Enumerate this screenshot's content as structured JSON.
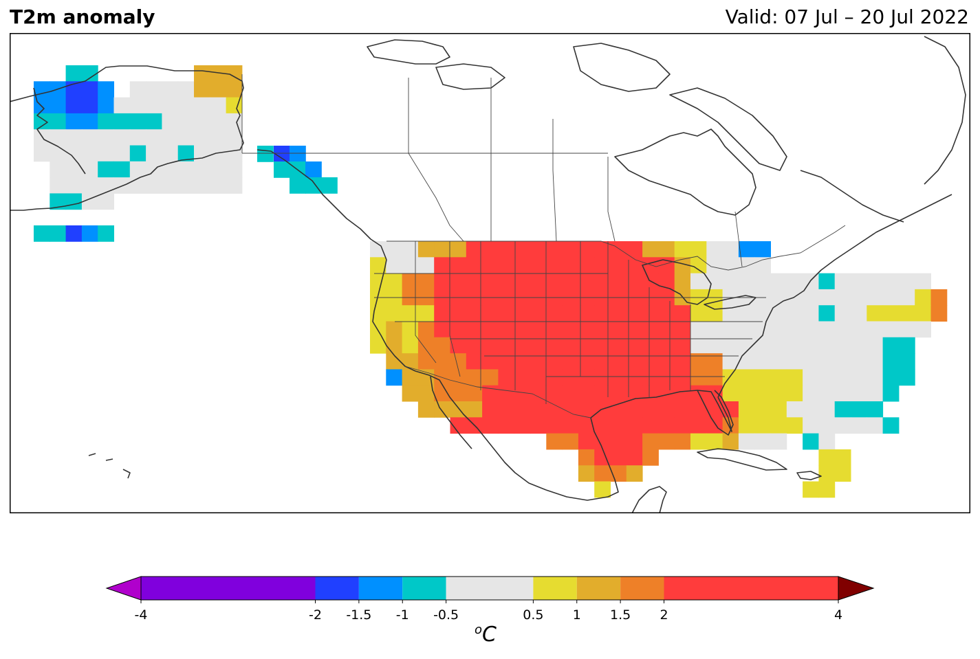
{
  "title": "T2m anomaly",
  "valid_label": "Valid: 07 Jul – 20 Jul 2022",
  "colorbar": {
    "unit_base": "C",
    "unit_sup": "o",
    "ticks": [
      -4,
      -2,
      -1.5,
      -1,
      -0.5,
      0.5,
      1,
      1.5,
      2,
      4
    ],
    "tick_labels": [
      "-4",
      "-2",
      "-1.5",
      "-1",
      "-0.5",
      "0.5",
      "1",
      "1.5",
      "2",
      "4"
    ],
    "bins": [
      {
        "from": -4,
        "to": -2,
        "color": "#8000dd"
      },
      {
        "from": -2,
        "to": -1.5,
        "color": "#2040ff"
      },
      {
        "from": -1.5,
        "to": -1,
        "color": "#0090ff"
      },
      {
        "from": -1,
        "to": -0.5,
        "color": "#00c8c8"
      },
      {
        "from": -0.5,
        "to": 0.5,
        "color": "#e6e6e6"
      },
      {
        "from": 0.5,
        "to": 1,
        "color": "#e6dc30"
      },
      {
        "from": 1,
        "to": 1.5,
        "color": "#e2ad2c"
      },
      {
        "from": 1.5,
        "to": 2,
        "color": "#ee8028"
      },
      {
        "from": 2,
        "to": 4,
        "color": "#ff3c3c"
      }
    ],
    "extend_low_color": "#b000cc",
    "extend_high_color": "#800000"
  },
  "anomaly_classes": {
    "B": "-2 to -1.5",
    "L": "-1.5 to -1",
    "C": "-1 to -0.5",
    "G": "-0.5 to 0.5",
    "Y": "0.5 to 1",
    "A": "1 to 1.5",
    "O": "1.5 to 2",
    "R": "2 to 4"
  },
  "class_colors": {
    "B": "#2040ff",
    "L": "#0090ff",
    "C": "#00c8c8",
    "G": "#e6e6e6",
    "Y": "#e6dc30",
    "A": "#e2ad2c",
    "O": "#ee8028",
    "R": "#ff3c3c"
  },
  "anomaly_grid": {
    "alaska": [
      "..CC......AAA",
      "LLBBL.GGGGAAA",
      "LLBBLGGGGGGGY",
      "CCLLCCCCGGGGG",
      "GGGGGGGGGGGGG",
      "GGGGGGCGGCGGG",
      ".GGGCCGGGGGGG",
      ".GGGGGGGGGGGG",
      ".CCGG..........",
      "..............",
      "CCBLC.........."
    ],
    "conus": [
      "GGGAAARRRRRRRRRRRAAYYGGLL...........",
      "YGGGRRRRRRRRRRRRRRRAYGGGG...........",
      "YYOORRRRRRRRRRRRRRRAGGGGGGGGCGGGGGG.",
      "YYOORRRRRRRRRRRRRRRAYYGGGGGGGGGGGGYO",
      "YYYYRRRRRRRRRRRRRRRRYYGGGGGGCGGYYYYO",
      "YAYORRRRRRRRRRRRRRRRGGGGGGGGGGGGGGG.",
      "YAYOORRRRRRRRRRRRRRRGGGGGGGGGGGGCC..",
      ".AAOOORRRRRRRRRRRRRROOGGGGGGGGGGCC..",
      ".LAAOOOORRRRRRRRRRRROOYYYYYGGGGGCC..",
      "..AAOOORRRRRRRRRRRRRRRYYYYYGGGGGC...",
      "...AAAARRRRRRRRRRRRRRRRYYYGGGCCC....",
      ".....RRRRRRRRRRRRRRRRROYYYYGGGGGC...",
      "...........OORRRROOOYYAGGG.CG.......",
      ".............ORRRO..........YY.....",
      ".............AOOA...........YY.....",
      "..............Y............YY......"
    ]
  }
}
